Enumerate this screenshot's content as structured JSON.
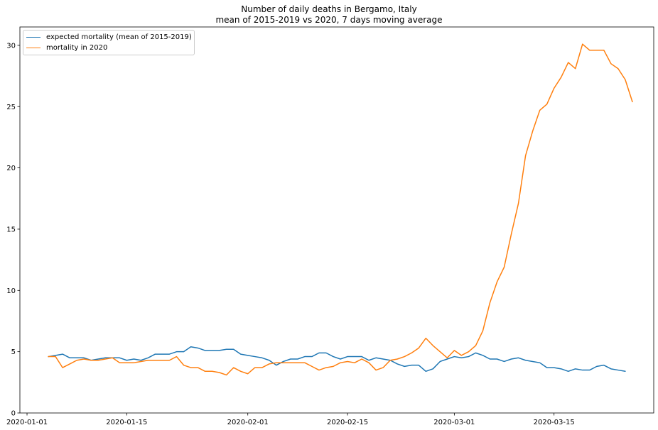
{
  "chart_data": {
    "type": "line",
    "title": "Number of daily deaths in Bergamo, Italy",
    "subtitle": "mean of 2015-2019 vs 2020, 7 days moving average",
    "xlabel": "",
    "ylabel": "",
    "x_tick_labels": [
      "2020-01-01",
      "2020-01-15",
      "2020-02-01",
      "2020-02-15",
      "2020-03-01",
      "2020-03-15"
    ],
    "y_tick_labels": [
      "0",
      "5",
      "10",
      "15",
      "20",
      "25",
      "30"
    ],
    "ylim": [
      0,
      31.5
    ],
    "xlim": [
      "2019-12-31",
      "2020-03-29"
    ],
    "grid": false,
    "legend_position": "top-left",
    "x_start": "2020-01-04",
    "series": [
      {
        "name": "expected mortality (mean of 2015-2019)",
        "color": "#1f77b4",
        "values": [
          4.6,
          4.7,
          4.8,
          4.5,
          4.5,
          4.5,
          4.3,
          4.4,
          4.5,
          4.5,
          4.5,
          4.3,
          4.4,
          4.3,
          4.5,
          4.8,
          4.8,
          4.8,
          5.0,
          5.0,
          5.4,
          5.3,
          5.1,
          5.1,
          5.1,
          5.2,
          5.2,
          4.8,
          4.7,
          4.6,
          4.5,
          4.3,
          3.9,
          4.2,
          4.4,
          4.4,
          4.6,
          4.6,
          4.9,
          4.9,
          4.6,
          4.4,
          4.6,
          4.6,
          4.6,
          4.3,
          4.5,
          4.4,
          4.3,
          4.0,
          3.8,
          3.9,
          3.9,
          3.4,
          3.6,
          4.2,
          4.4,
          4.6,
          4.5,
          4.6,
          4.9,
          4.7,
          4.4,
          4.4,
          4.2,
          4.4,
          4.5,
          4.3,
          4.2,
          4.1,
          3.7,
          3.7,
          3.6,
          3.4,
          3.6,
          3.5,
          3.5,
          3.8,
          3.9,
          3.6,
          3.5,
          3.4
        ]
      },
      {
        "name": "mortality in 2020",
        "color": "#ff7f0e",
        "values": [
          4.6,
          4.6,
          3.7,
          4.0,
          4.3,
          4.4,
          4.3,
          4.3,
          4.4,
          4.5,
          4.1,
          4.1,
          4.1,
          4.2,
          4.3,
          4.3,
          4.3,
          4.3,
          4.6,
          3.9,
          3.7,
          3.7,
          3.4,
          3.4,
          3.3,
          3.1,
          3.7,
          3.4,
          3.2,
          3.7,
          3.7,
          4.0,
          4.1,
          4.1,
          4.1,
          4.1,
          4.1,
          3.8,
          3.5,
          3.7,
          3.8,
          4.1,
          4.2,
          4.1,
          4.4,
          4.1,
          3.5,
          3.7,
          4.3,
          4.4,
          4.6,
          4.9,
          5.3,
          6.1,
          5.5,
          5.0,
          4.5,
          5.1,
          4.7,
          5.0,
          5.5,
          6.7,
          9.0,
          10.7,
          11.9,
          14.6,
          17.1,
          21.0,
          23.0,
          24.7,
          25.2,
          26.5,
          27.4,
          28.6,
          28.1,
          30.1,
          29.6,
          29.6,
          29.6,
          28.5,
          28.1,
          27.2,
          25.4
        ]
      }
    ]
  }
}
